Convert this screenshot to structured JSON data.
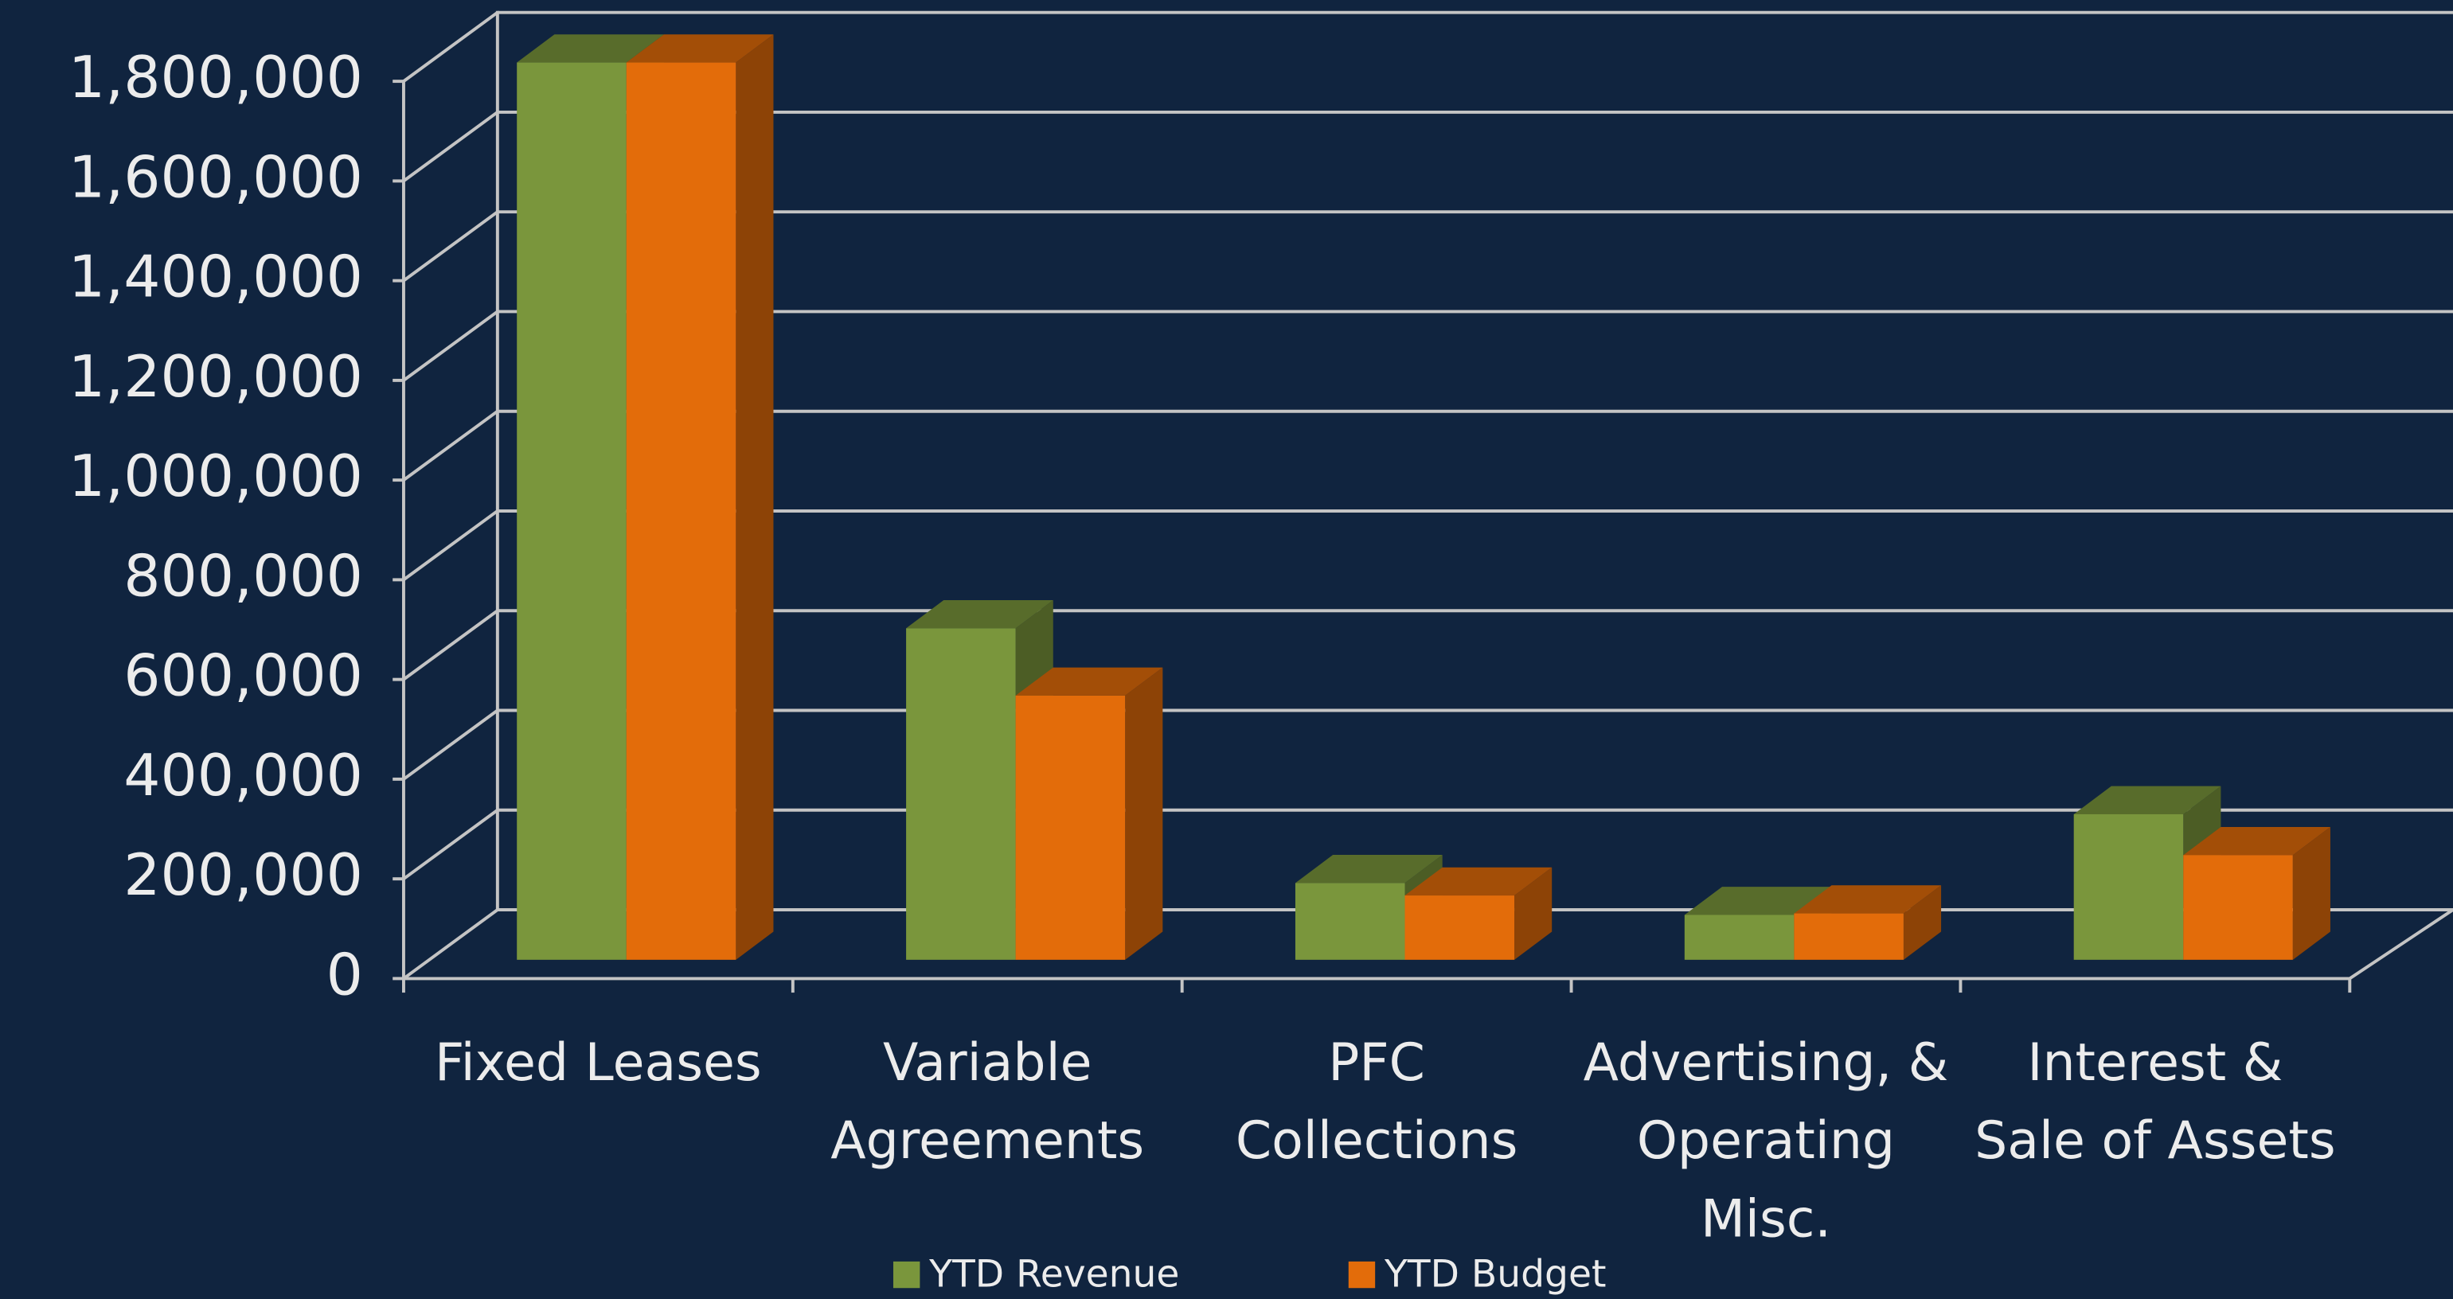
{
  "chart_data": {
    "type": "bar",
    "categories": [
      "Fixed Leases",
      "Variable Agreements",
      "PFC Collections",
      "Advertising, & Operating Misc.",
      "Interest & Sale of Assets"
    ],
    "series": [
      {
        "name": "YTD Revenue",
        "color": "#7a963c",
        "values": [
          1800000,
          665000,
          154000,
          90000,
          292000
        ]
      },
      {
        "name": "YTD Budget",
        "color": "#e36c0a",
        "values": [
          1800000,
          530000,
          129000,
          93000,
          210000
        ]
      }
    ],
    "ylim": [
      0,
      1800000
    ],
    "yticks": [
      0,
      {
        "value": 200000,
        "label": "200,000"
      },
      {
        "value": 400000,
        "label": "400,000"
      },
      {
        "value": 600000,
        "label": "600,000"
      },
      {
        "value": 800000,
        "label": "800,000"
      },
      {
        "value": 1000000,
        "label": "1,000,000"
      },
      {
        "value": 1200000,
        "label": "1,200,000"
      },
      {
        "value": 1400000,
        "label": "1,400,000"
      },
      {
        "value": 1600000,
        "label": "1,600,000"
      },
      {
        "value": 1800000,
        "label": "1,800,000"
      }
    ],
    "grid": true,
    "legend": "bottom"
  }
}
